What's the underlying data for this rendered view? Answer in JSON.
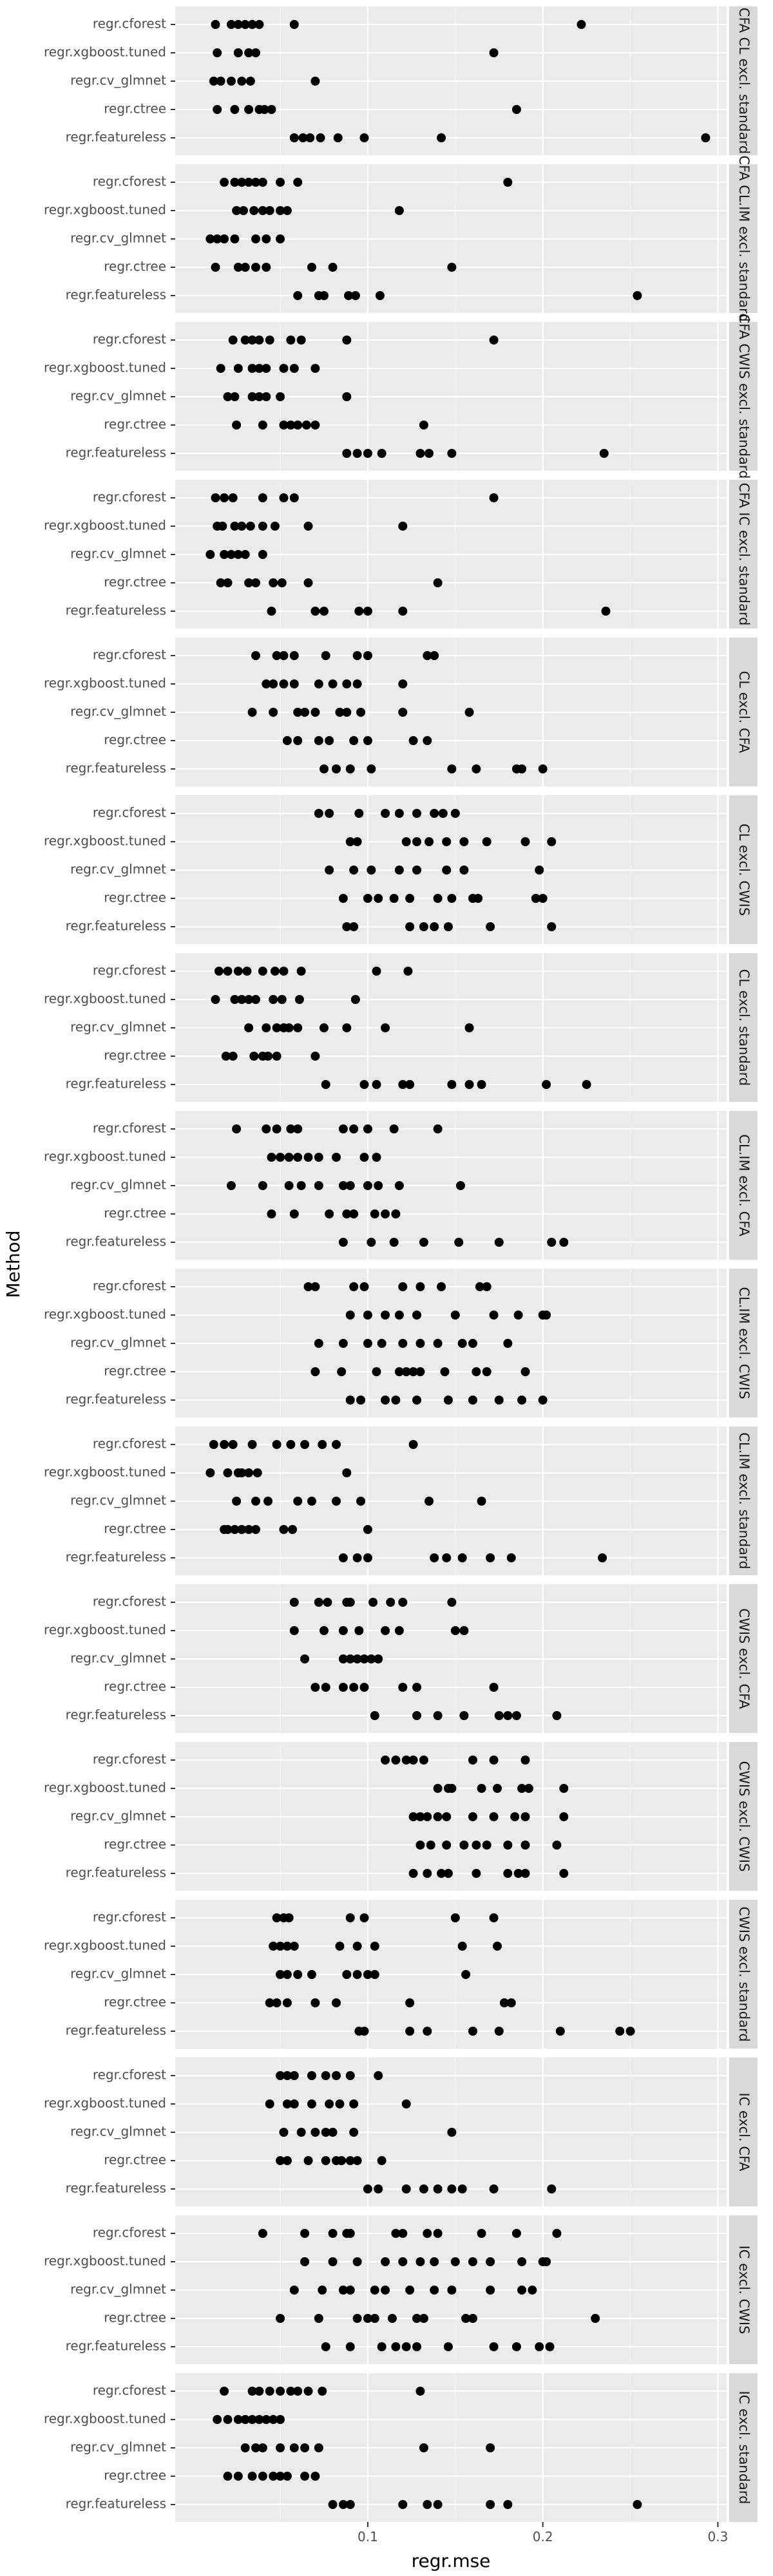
{
  "chart_data": {
    "type": "scatter",
    "title": "",
    "xlabel": "regr.mse",
    "ylabel": "Method",
    "xlim": [
      -0.01,
      0.305
    ],
    "x_ticks": [
      0.1,
      0.2,
      0.3
    ],
    "x_tick_labels": [
      "0.1",
      "0.2",
      "0.3"
    ],
    "grid": true,
    "categories": [
      "regr.cforest",
      "regr.xgboost.tuned",
      "regr.cv_glmnet",
      "regr.ctree",
      "regr.featureless"
    ],
    "panels": [
      {
        "label": "CFA CL excl. standard",
        "points": {
          "regr.cforest": [
            0.013,
            0.022,
            0.026,
            0.03,
            0.034,
            0.038,
            0.058,
            0.222
          ],
          "regr.xgboost.tuned": [
            0.014,
            0.026,
            0.032,
            0.036,
            0.172
          ],
          "regr.cv_glmnet": [
            0.012,
            0.016,
            0.022,
            0.028,
            0.033,
            0.07
          ],
          "regr.ctree": [
            0.014,
            0.024,
            0.032,
            0.038,
            0.041,
            0.045,
            0.185
          ],
          "regr.featureless": [
            0.058,
            0.063,
            0.067,
            0.073,
            0.083,
            0.098,
            0.142,
            0.293
          ]
        }
      },
      {
        "label": "CFA CL.IM excl. standard",
        "points": {
          "regr.cforest": [
            0.018,
            0.024,
            0.028,
            0.032,
            0.036,
            0.04,
            0.05,
            0.06,
            0.18
          ],
          "regr.xgboost.tuned": [
            0.025,
            0.029,
            0.035,
            0.04,
            0.044,
            0.05,
            0.054,
            0.118
          ],
          "regr.cv_glmnet": [
            0.01,
            0.014,
            0.018,
            0.024,
            0.036,
            0.042,
            0.05
          ],
          "regr.ctree": [
            0.013,
            0.026,
            0.03,
            0.036,
            0.042,
            0.068,
            0.08,
            0.148
          ],
          "regr.featureless": [
            0.06,
            0.072,
            0.075,
            0.089,
            0.093,
            0.107,
            0.254
          ]
        }
      },
      {
        "label": "CFA CWIS excl. standard",
        "points": {
          "regr.cforest": [
            0.023,
            0.03,
            0.034,
            0.038,
            0.044,
            0.056,
            0.062,
            0.088,
            0.172
          ],
          "regr.xgboost.tuned": [
            0.016,
            0.026,
            0.034,
            0.038,
            0.042,
            0.052,
            0.058,
            0.07
          ],
          "regr.cv_glmnet": [
            0.02,
            0.024,
            0.034,
            0.038,
            0.042,
            0.05,
            0.088
          ],
          "regr.ctree": [
            0.025,
            0.04,
            0.052,
            0.056,
            0.06,
            0.065,
            0.07,
            0.132
          ],
          "regr.featureless": [
            0.088,
            0.094,
            0.1,
            0.108,
            0.13,
            0.135,
            0.148,
            0.235
          ]
        }
      },
      {
        "label": "CFA IC excl. standard",
        "points": {
          "regr.cforest": [
            0.013,
            0.018,
            0.023,
            0.04,
            0.052,
            0.058,
            0.172
          ],
          "regr.xgboost.tuned": [
            0.014,
            0.017,
            0.024,
            0.028,
            0.033,
            0.04,
            0.047,
            0.066,
            0.12
          ],
          "regr.cv_glmnet": [
            0.01,
            0.018,
            0.022,
            0.026,
            0.03,
            0.04
          ],
          "regr.ctree": [
            0.016,
            0.02,
            0.032,
            0.036,
            0.046,
            0.051,
            0.066,
            0.14
          ],
          "regr.featureless": [
            0.045,
            0.07,
            0.075,
            0.095,
            0.1,
            0.12,
            0.236
          ]
        }
      },
      {
        "label": "CL excl. CFA",
        "points": {
          "regr.cforest": [
            0.036,
            0.048,
            0.052,
            0.058,
            0.076,
            0.094,
            0.1,
            0.134,
            0.138
          ],
          "regr.xgboost.tuned": [
            0.042,
            0.046,
            0.052,
            0.058,
            0.072,
            0.08,
            0.088,
            0.094,
            0.12
          ],
          "regr.cv_glmnet": [
            0.034,
            0.046,
            0.06,
            0.064,
            0.07,
            0.084,
            0.088,
            0.096,
            0.12,
            0.158
          ],
          "regr.ctree": [
            0.054,
            0.06,
            0.072,
            0.078,
            0.092,
            0.1,
            0.126,
            0.134
          ],
          "regr.featureless": [
            0.075,
            0.082,
            0.09,
            0.102,
            0.148,
            0.162,
            0.185,
            0.188,
            0.2
          ]
        }
      },
      {
        "label": "CL excl. CWIS",
        "points": {
          "regr.cforest": [
            0.072,
            0.078,
            0.095,
            0.11,
            0.118,
            0.128,
            0.138,
            0.143,
            0.15
          ],
          "regr.xgboost.tuned": [
            0.09,
            0.094,
            0.122,
            0.128,
            0.135,
            0.145,
            0.155,
            0.168,
            0.19,
            0.205
          ],
          "regr.cv_glmnet": [
            0.078,
            0.092,
            0.102,
            0.118,
            0.128,
            0.145,
            0.155,
            0.198
          ],
          "regr.ctree": [
            0.086,
            0.1,
            0.106,
            0.115,
            0.124,
            0.14,
            0.148,
            0.16,
            0.163,
            0.196,
            0.2
          ],
          "regr.featureless": [
            0.088,
            0.092,
            0.124,
            0.132,
            0.138,
            0.146,
            0.17,
            0.205
          ]
        }
      },
      {
        "label": "CL excl. standard",
        "points": {
          "regr.cforest": [
            0.015,
            0.02,
            0.026,
            0.031,
            0.04,
            0.047,
            0.052,
            0.062,
            0.105,
            0.123
          ],
          "regr.xgboost.tuned": [
            0.013,
            0.024,
            0.028,
            0.032,
            0.036,
            0.046,
            0.051,
            0.061,
            0.093
          ],
          "regr.cv_glmnet": [
            0.032,
            0.042,
            0.048,
            0.052,
            0.055,
            0.06,
            0.075,
            0.088,
            0.11,
            0.158
          ],
          "regr.ctree": [
            0.019,
            0.023,
            0.035,
            0.04,
            0.043,
            0.048,
            0.07
          ],
          "regr.featureless": [
            0.076,
            0.098,
            0.105,
            0.12,
            0.124,
            0.148,
            0.158,
            0.165,
            0.202,
            0.225
          ]
        }
      },
      {
        "label": "CL.IM excl. CFA",
        "points": {
          "regr.cforest": [
            0.025,
            0.042,
            0.048,
            0.056,
            0.06,
            0.086,
            0.092,
            0.1,
            0.115,
            0.14
          ],
          "regr.xgboost.tuned": [
            0.045,
            0.05,
            0.055,
            0.06,
            0.066,
            0.072,
            0.082,
            0.098,
            0.105
          ],
          "regr.cv_glmnet": [
            0.022,
            0.04,
            0.055,
            0.062,
            0.072,
            0.086,
            0.09,
            0.1,
            0.106,
            0.118,
            0.153
          ],
          "regr.ctree": [
            0.045,
            0.058,
            0.078,
            0.088,
            0.092,
            0.104,
            0.11,
            0.116
          ],
          "regr.featureless": [
            0.086,
            0.102,
            0.115,
            0.132,
            0.152,
            0.175,
            0.205,
            0.212
          ]
        }
      },
      {
        "label": "CL.IM excl. CWIS",
        "points": {
          "regr.cforest": [
            0.066,
            0.07,
            0.092,
            0.098,
            0.12,
            0.13,
            0.142,
            0.164,
            0.168
          ],
          "regr.xgboost.tuned": [
            0.09,
            0.1,
            0.11,
            0.118,
            0.128,
            0.15,
            0.172,
            0.186,
            0.2,
            0.202
          ],
          "regr.cv_glmnet": [
            0.072,
            0.086,
            0.1,
            0.108,
            0.12,
            0.13,
            0.14,
            0.154,
            0.16,
            0.18
          ],
          "regr.ctree": [
            0.07,
            0.085,
            0.105,
            0.118,
            0.122,
            0.126,
            0.13,
            0.144,
            0.162,
            0.168,
            0.19
          ],
          "regr.featureless": [
            0.09,
            0.096,
            0.11,
            0.116,
            0.128,
            0.146,
            0.16,
            0.175,
            0.188,
            0.2
          ]
        }
      },
      {
        "label": "CL.IM excl. standard",
        "points": {
          "regr.cforest": [
            0.012,
            0.018,
            0.023,
            0.034,
            0.048,
            0.056,
            0.064,
            0.074,
            0.082,
            0.126
          ],
          "regr.xgboost.tuned": [
            0.01,
            0.02,
            0.026,
            0.028,
            0.032,
            0.037,
            0.088
          ],
          "regr.cv_glmnet": [
            0.025,
            0.036,
            0.043,
            0.06,
            0.068,
            0.082,
            0.096,
            0.135,
            0.165
          ],
          "regr.ctree": [
            0.018,
            0.02,
            0.024,
            0.028,
            0.032,
            0.036,
            0.052,
            0.057,
            0.1
          ],
          "regr.featureless": [
            0.086,
            0.094,
            0.1,
            0.138,
            0.145,
            0.154,
            0.17,
            0.182,
            0.234
          ]
        }
      },
      {
        "label": "CWIS excl. CFA",
        "points": {
          "regr.cforest": [
            0.058,
            0.072,
            0.077,
            0.088,
            0.09,
            0.103,
            0.113,
            0.12,
            0.148
          ],
          "regr.xgboost.tuned": [
            0.058,
            0.075,
            0.086,
            0.095,
            0.11,
            0.118,
            0.15,
            0.155
          ],
          "regr.cv_glmnet": [
            0.064,
            0.086,
            0.09,
            0.094,
            0.098,
            0.102,
            0.106
          ],
          "regr.ctree": [
            0.07,
            0.076,
            0.086,
            0.092,
            0.098,
            0.12,
            0.128,
            0.172
          ],
          "regr.featureless": [
            0.104,
            0.128,
            0.14,
            0.155,
            0.175,
            0.18,
            0.185,
            0.208
          ]
        }
      },
      {
        "label": "CWIS excl. CWIS",
        "points": {
          "regr.cforest": [
            0.11,
            0.116,
            0.122,
            0.126,
            0.132,
            0.16,
            0.172,
            0.19
          ],
          "regr.xgboost.tuned": [
            0.14,
            0.146,
            0.148,
            0.165,
            0.174,
            0.188,
            0.192,
            0.212
          ],
          "regr.cv_glmnet": [
            0.126,
            0.13,
            0.134,
            0.14,
            0.145,
            0.16,
            0.172,
            0.184,
            0.19,
            0.212
          ],
          "regr.ctree": [
            0.13,
            0.136,
            0.145,
            0.155,
            0.162,
            0.168,
            0.18,
            0.19,
            0.208
          ],
          "regr.featureless": [
            0.126,
            0.134,
            0.142,
            0.146,
            0.162,
            0.18,
            0.186,
            0.19,
            0.212
          ]
        }
      },
      {
        "label": "CWIS excl. standard",
        "points": {
          "regr.cforest": [
            0.048,
            0.052,
            0.055,
            0.09,
            0.098,
            0.15,
            0.172
          ],
          "regr.xgboost.tuned": [
            0.046,
            0.05,
            0.054,
            0.058,
            0.084,
            0.094,
            0.104,
            0.154,
            0.174
          ],
          "regr.cv_glmnet": [
            0.05,
            0.054,
            0.06,
            0.068,
            0.088,
            0.094,
            0.1,
            0.104,
            0.156
          ],
          "regr.ctree": [
            0.044,
            0.048,
            0.054,
            0.07,
            0.082,
            0.124,
            0.178,
            0.182
          ],
          "regr.featureless": [
            0.095,
            0.098,
            0.124,
            0.134,
            0.16,
            0.175,
            0.21,
            0.244,
            0.25
          ]
        }
      },
      {
        "label": "IC excl. CFA",
        "points": {
          "regr.cforest": [
            0.05,
            0.054,
            0.058,
            0.068,
            0.076,
            0.082,
            0.09,
            0.106
          ],
          "regr.xgboost.tuned": [
            0.044,
            0.054,
            0.058,
            0.068,
            0.078,
            0.084,
            0.092,
            0.122
          ],
          "regr.cv_glmnet": [
            0.052,
            0.062,
            0.07,
            0.076,
            0.08,
            0.092,
            0.148
          ],
          "regr.ctree": [
            0.05,
            0.054,
            0.066,
            0.076,
            0.082,
            0.085,
            0.09,
            0.094,
            0.108
          ],
          "regr.featureless": [
            0.1,
            0.106,
            0.122,
            0.132,
            0.14,
            0.148,
            0.154,
            0.172,
            0.205
          ]
        }
      },
      {
        "label": "IC excl. CWIS",
        "points": {
          "regr.cforest": [
            0.04,
            0.064,
            0.08,
            0.088,
            0.09,
            0.116,
            0.12,
            0.134,
            0.14,
            0.165,
            0.185,
            0.208
          ],
          "regr.xgboost.tuned": [
            0.064,
            0.08,
            0.094,
            0.11,
            0.12,
            0.13,
            0.138,
            0.15,
            0.16,
            0.17,
            0.188,
            0.2,
            0.202
          ],
          "regr.cv_glmnet": [
            0.058,
            0.074,
            0.086,
            0.09,
            0.104,
            0.11,
            0.124,
            0.138,
            0.148,
            0.17,
            0.188,
            0.194
          ],
          "regr.ctree": [
            0.05,
            0.072,
            0.094,
            0.1,
            0.104,
            0.114,
            0.128,
            0.132,
            0.156,
            0.16,
            0.23
          ],
          "regr.featureless": [
            0.076,
            0.09,
            0.108,
            0.116,
            0.122,
            0.128,
            0.146,
            0.172,
            0.185,
            0.198,
            0.204
          ]
        }
      },
      {
        "label": "IC excl. standard",
        "points": {
          "regr.cforest": [
            0.018,
            0.034,
            0.038,
            0.044,
            0.05,
            0.056,
            0.06,
            0.066,
            0.074,
            0.13
          ],
          "regr.xgboost.tuned": [
            0.014,
            0.02,
            0.026,
            0.03,
            0.034,
            0.038,
            0.042,
            0.046,
            0.05
          ],
          "regr.cv_glmnet": [
            0.03,
            0.036,
            0.04,
            0.05,
            0.058,
            0.064,
            0.072,
            0.132,
            0.17
          ],
          "regr.ctree": [
            0.02,
            0.026,
            0.034,
            0.04,
            0.046,
            0.05,
            0.054,
            0.064,
            0.07
          ],
          "regr.featureless": [
            0.08,
            0.086,
            0.09,
            0.12,
            0.134,
            0.14,
            0.17,
            0.18,
            0.254
          ]
        }
      }
    ]
  }
}
